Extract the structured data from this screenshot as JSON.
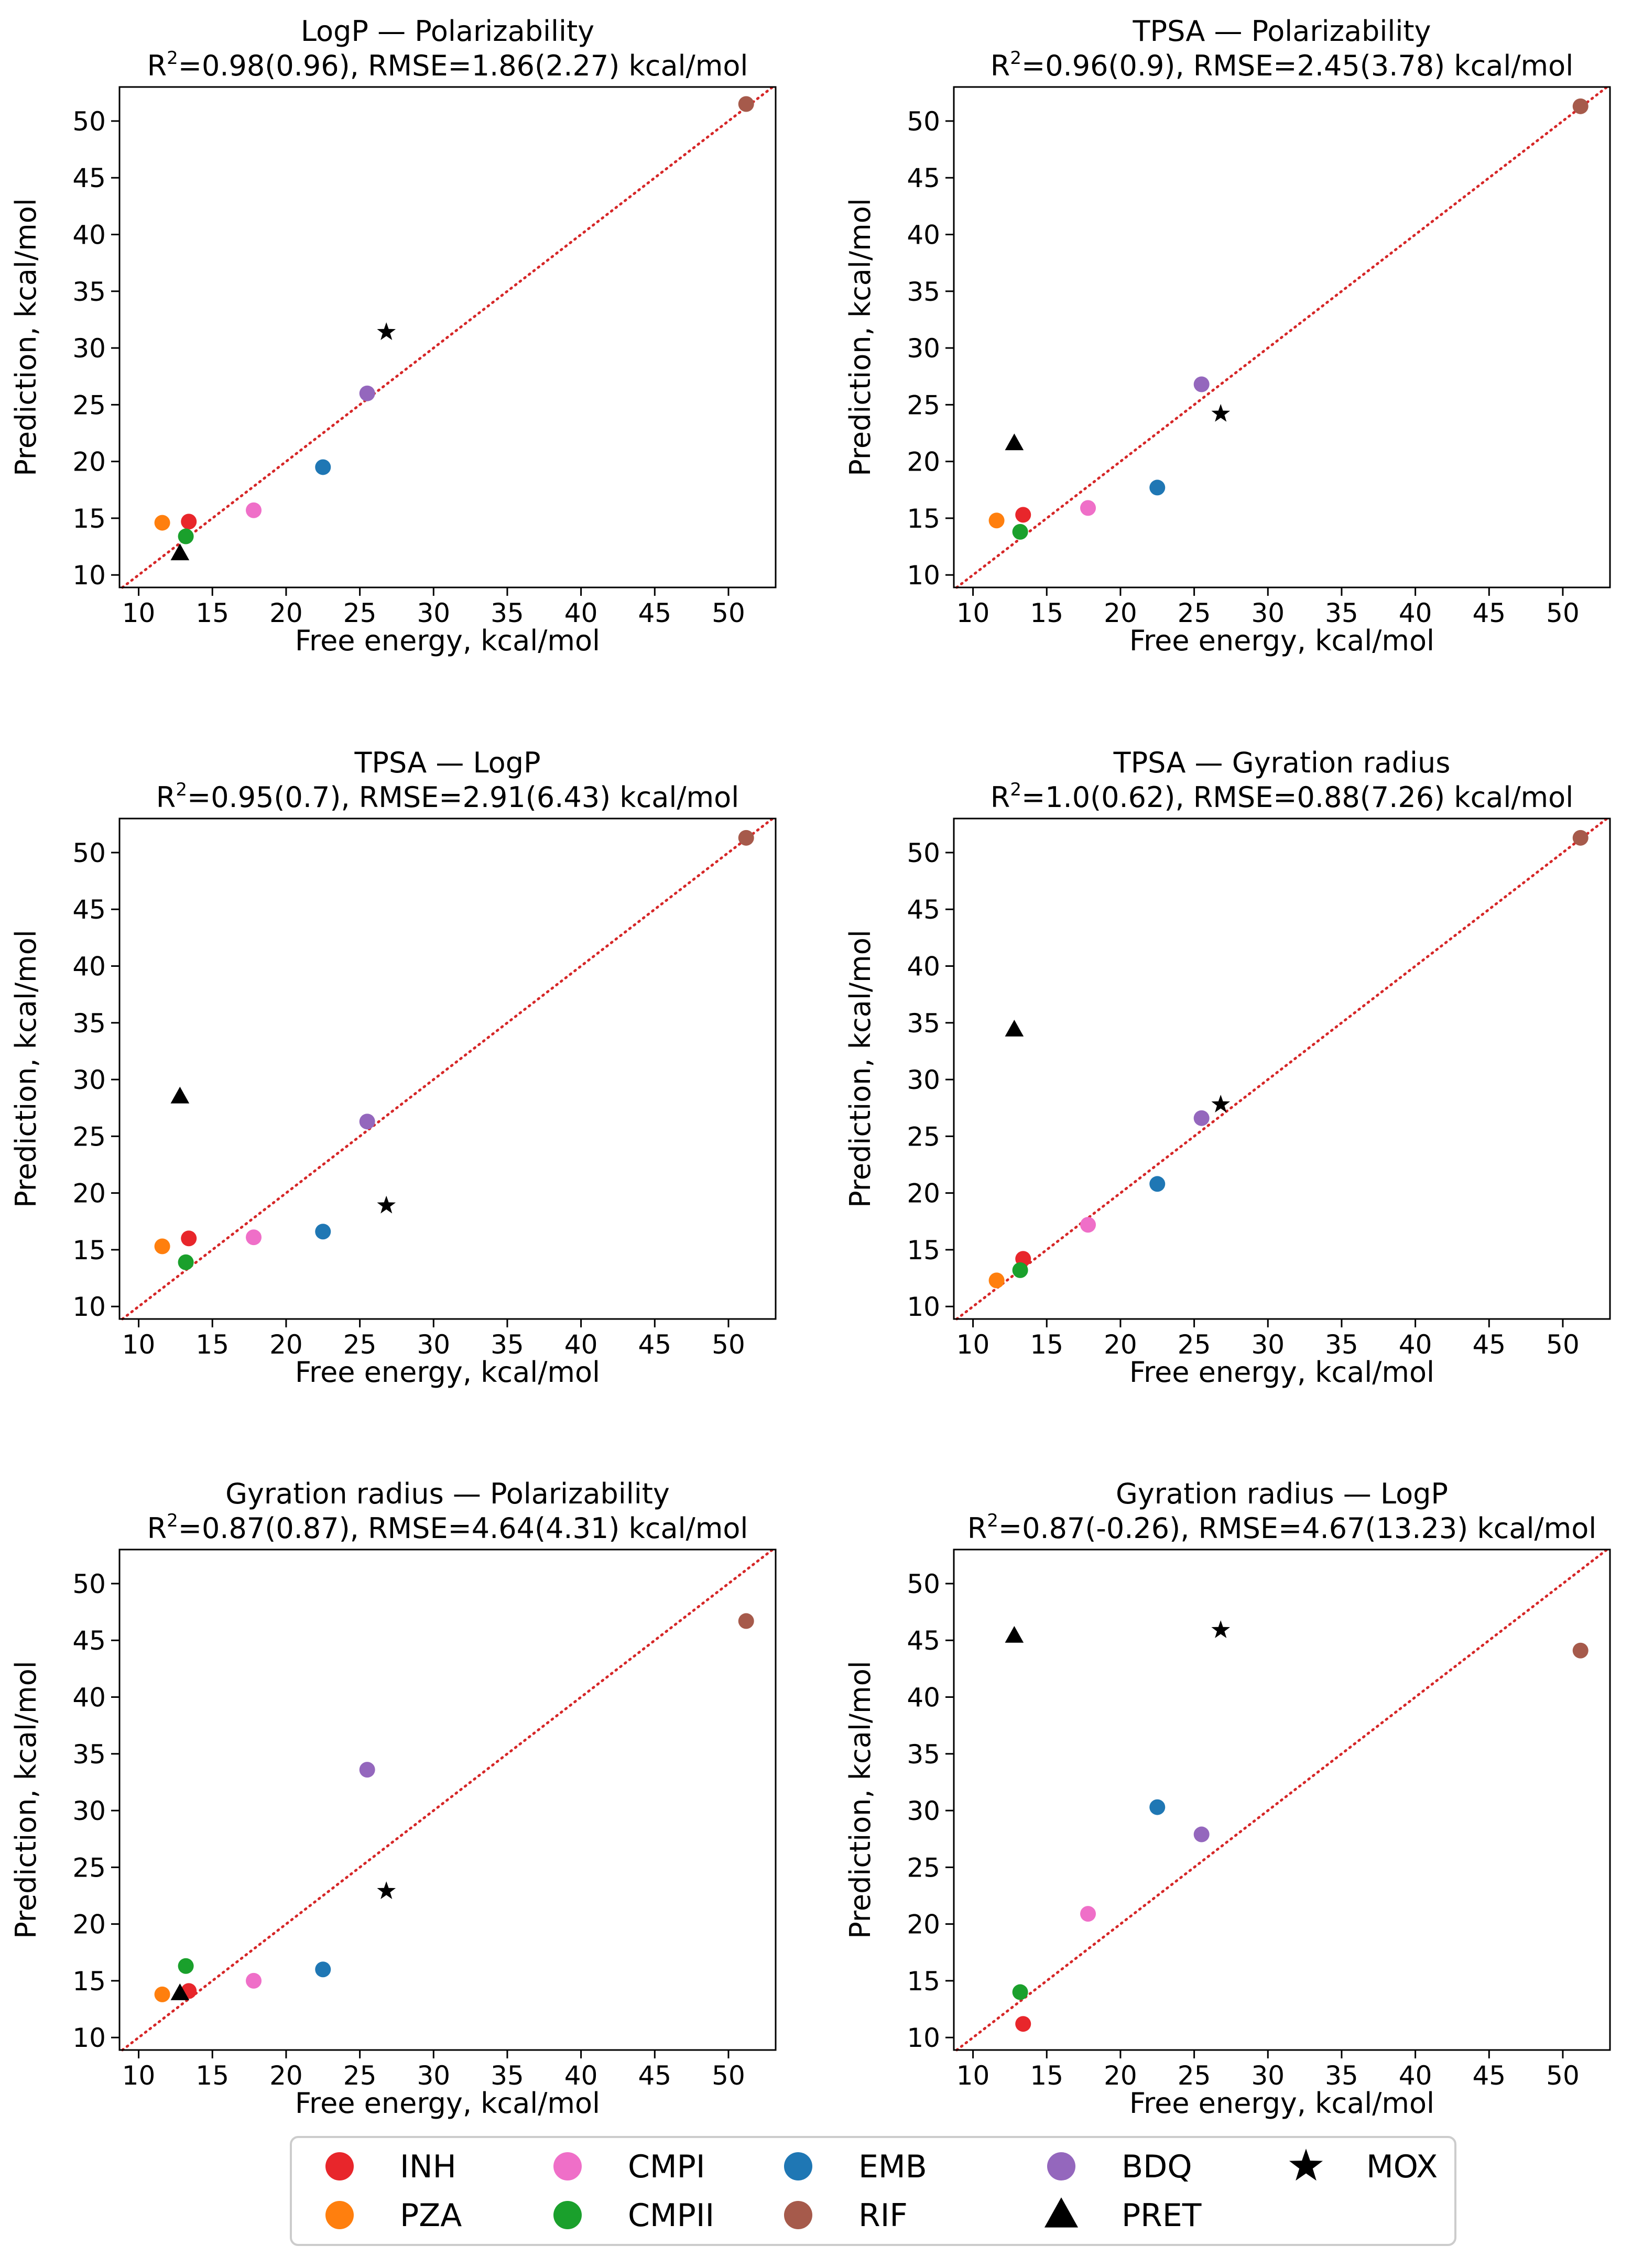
{
  "legend": {
    "placement": "bottom-center",
    "entries": [
      {
        "name": "INH",
        "marker": "circle",
        "color": "#e8262b"
      },
      {
        "name": "PZA",
        "marker": "circle",
        "color": "#ff7f0e"
      },
      {
        "name": "CMPI",
        "marker": "circle",
        "color": "#ef6fc8"
      },
      {
        "name": "CMPII",
        "marker": "circle",
        "color": "#1aa02c"
      },
      {
        "name": "EMB",
        "marker": "circle",
        "color": "#1f77b4"
      },
      {
        "name": "RIF",
        "marker": "circle",
        "color": "#a65a4b"
      },
      {
        "name": "BDQ",
        "marker": "circle",
        "color": "#9467bd"
      },
      {
        "name": "PRET",
        "marker": "triangle",
        "color": "#000000"
      },
      {
        "name": "MOX",
        "marker": "star",
        "color": "#000000"
      }
    ]
  },
  "chart_data": [
    {
      "type": "scatter",
      "title": "LogP — Polarizability",
      "subtitle_pre": "R",
      "subtitle_sup": "2",
      "subtitle_post": "=0.98(0.96), RMSE=1.86(2.27) kcal/mol",
      "xlabel": "Free energy, kcal/mol",
      "ylabel": "Prediction, kcal/mol",
      "xlim": [
        8.7,
        53.2
      ],
      "ylim": [
        8.9,
        53.0
      ],
      "xticks": [
        10,
        15,
        20,
        25,
        30,
        35,
        40,
        45,
        50
      ],
      "yticks": [
        10,
        15,
        20,
        25,
        30,
        35,
        40,
        45,
        50
      ],
      "diagonal": true,
      "points": [
        {
          "name": "INH",
          "x": 13.4,
          "y": 14.7
        },
        {
          "name": "PZA",
          "x": 11.6,
          "y": 14.6
        },
        {
          "name": "CMPI",
          "x": 17.8,
          "y": 15.7
        },
        {
          "name": "CMPII",
          "x": 13.2,
          "y": 13.4
        },
        {
          "name": "EMB",
          "x": 22.5,
          "y": 19.5
        },
        {
          "name": "RIF",
          "x": 51.2,
          "y": 51.5
        },
        {
          "name": "BDQ",
          "x": 25.5,
          "y": 26.0
        },
        {
          "name": "PRET",
          "x": 12.8,
          "y": 11.9
        },
        {
          "name": "MOX",
          "x": 26.8,
          "y": 31.4
        }
      ]
    },
    {
      "type": "scatter",
      "title": "TPSA — Polarizability",
      "subtitle_pre": "R",
      "subtitle_sup": "2",
      "subtitle_post": "=0.96(0.9), RMSE=2.45(3.78) kcal/mol",
      "xlabel": "Free energy, kcal/mol",
      "ylabel": "Prediction, kcal/mol",
      "xlim": [
        8.7,
        53.2
      ],
      "ylim": [
        8.9,
        53.0
      ],
      "xticks": [
        10,
        15,
        20,
        25,
        30,
        35,
        40,
        45,
        50
      ],
      "yticks": [
        10,
        15,
        20,
        25,
        30,
        35,
        40,
        45,
        50
      ],
      "diagonal": true,
      "points": [
        {
          "name": "INH",
          "x": 13.4,
          "y": 15.3
        },
        {
          "name": "PZA",
          "x": 11.6,
          "y": 14.8
        },
        {
          "name": "CMPI",
          "x": 17.8,
          "y": 15.9
        },
        {
          "name": "CMPII",
          "x": 13.2,
          "y": 13.8
        },
        {
          "name": "EMB",
          "x": 22.5,
          "y": 17.7
        },
        {
          "name": "RIF",
          "x": 51.2,
          "y": 51.3
        },
        {
          "name": "BDQ",
          "x": 25.5,
          "y": 26.8
        },
        {
          "name": "PRET",
          "x": 12.8,
          "y": 21.6
        },
        {
          "name": "MOX",
          "x": 26.8,
          "y": 24.2
        }
      ]
    },
    {
      "type": "scatter",
      "title": "TPSA — LogP",
      "subtitle_pre": "R",
      "subtitle_sup": "2",
      "subtitle_post": "=0.95(0.7), RMSE=2.91(6.43) kcal/mol",
      "xlabel": "Free energy, kcal/mol",
      "ylabel": "Prediction, kcal/mol",
      "xlim": [
        8.7,
        53.2
      ],
      "ylim": [
        8.9,
        53.0
      ],
      "xticks": [
        10,
        15,
        20,
        25,
        30,
        35,
        40,
        45,
        50
      ],
      "yticks": [
        10,
        15,
        20,
        25,
        30,
        35,
        40,
        45,
        50
      ],
      "diagonal": true,
      "points": [
        {
          "name": "INH",
          "x": 13.4,
          "y": 16.0
        },
        {
          "name": "PZA",
          "x": 11.6,
          "y": 15.3
        },
        {
          "name": "CMPI",
          "x": 17.8,
          "y": 16.1
        },
        {
          "name": "CMPII",
          "x": 13.2,
          "y": 13.9
        },
        {
          "name": "EMB",
          "x": 22.5,
          "y": 16.6
        },
        {
          "name": "RIF",
          "x": 51.2,
          "y": 51.3
        },
        {
          "name": "BDQ",
          "x": 25.5,
          "y": 26.3
        },
        {
          "name": "PRET",
          "x": 12.8,
          "y": 28.5
        },
        {
          "name": "MOX",
          "x": 26.8,
          "y": 18.9
        }
      ]
    },
    {
      "type": "scatter",
      "title": "TPSA — Gyration radius",
      "subtitle_pre": "R",
      "subtitle_sup": "2",
      "subtitle_post": "=1.0(0.62), RMSE=0.88(7.26) kcal/mol",
      "xlabel": "Free energy, kcal/mol",
      "ylabel": "Prediction, kcal/mol",
      "xlim": [
        8.7,
        53.2
      ],
      "ylim": [
        8.9,
        53.0
      ],
      "xticks": [
        10,
        15,
        20,
        25,
        30,
        35,
        40,
        45,
        50
      ],
      "yticks": [
        10,
        15,
        20,
        25,
        30,
        35,
        40,
        45,
        50
      ],
      "diagonal": true,
      "points": [
        {
          "name": "INH",
          "x": 13.4,
          "y": 14.2
        },
        {
          "name": "PZA",
          "x": 11.6,
          "y": 12.3
        },
        {
          "name": "CMPI",
          "x": 17.8,
          "y": 17.2
        },
        {
          "name": "CMPII",
          "x": 13.2,
          "y": 13.2
        },
        {
          "name": "EMB",
          "x": 22.5,
          "y": 20.8
        },
        {
          "name": "RIF",
          "x": 51.2,
          "y": 51.3
        },
        {
          "name": "BDQ",
          "x": 25.5,
          "y": 26.6
        },
        {
          "name": "PRET",
          "x": 12.8,
          "y": 34.4
        },
        {
          "name": "MOX",
          "x": 26.8,
          "y": 27.8
        }
      ]
    },
    {
      "type": "scatter",
      "title": "Gyration radius — Polarizability",
      "subtitle_pre": "R",
      "subtitle_sup": "2",
      "subtitle_post": "=0.87(0.87), RMSE=4.64(4.31) kcal/mol",
      "xlabel": "Free energy, kcal/mol",
      "ylabel": "Prediction, kcal/mol",
      "xlim": [
        8.7,
        53.2
      ],
      "ylim": [
        8.9,
        53.0
      ],
      "xticks": [
        10,
        15,
        20,
        25,
        30,
        35,
        40,
        45,
        50
      ],
      "yticks": [
        10,
        15,
        20,
        25,
        30,
        35,
        40,
        45,
        50
      ],
      "diagonal": true,
      "points": [
        {
          "name": "INH",
          "x": 13.4,
          "y": 14.1
        },
        {
          "name": "PZA",
          "x": 11.6,
          "y": 13.8
        },
        {
          "name": "CMPI",
          "x": 17.8,
          "y": 15.0
        },
        {
          "name": "CMPII",
          "x": 13.2,
          "y": 16.3
        },
        {
          "name": "EMB",
          "x": 22.5,
          "y": 16.0
        },
        {
          "name": "RIF",
          "x": 51.2,
          "y": 46.7
        },
        {
          "name": "BDQ",
          "x": 25.5,
          "y": 33.6
        },
        {
          "name": "PRET",
          "x": 12.8,
          "y": 13.9
        },
        {
          "name": "MOX",
          "x": 26.8,
          "y": 22.9
        }
      ]
    },
    {
      "type": "scatter",
      "title": "Gyration radius — LogP",
      "subtitle_pre": "R",
      "subtitle_sup": "2",
      "subtitle_post": "=0.87(-0.26), RMSE=4.67(13.23) kcal/mol",
      "xlabel": "Free energy, kcal/mol",
      "ylabel": "Prediction, kcal/mol",
      "xlim": [
        8.7,
        53.2
      ],
      "ylim": [
        8.9,
        53.0
      ],
      "xticks": [
        10,
        15,
        20,
        25,
        30,
        35,
        40,
        45,
        50
      ],
      "yticks": [
        10,
        15,
        20,
        25,
        30,
        35,
        40,
        45,
        50
      ],
      "diagonal": true,
      "points": [
        {
          "name": "INH",
          "x": 13.4,
          "y": 11.2
        },
        {
          "name": "CMPI",
          "x": 17.8,
          "y": 20.9
        },
        {
          "name": "CMPII",
          "x": 13.2,
          "y": 14.0
        },
        {
          "name": "EMB",
          "x": 22.5,
          "y": 30.3
        },
        {
          "name": "RIF",
          "x": 51.2,
          "y": 44.1
        },
        {
          "name": "BDQ",
          "x": 25.5,
          "y": 27.9
        },
        {
          "name": "PRET",
          "x": 12.8,
          "y": 45.4
        },
        {
          "name": "MOX",
          "x": 26.8,
          "y": 45.9
        }
      ]
    }
  ]
}
